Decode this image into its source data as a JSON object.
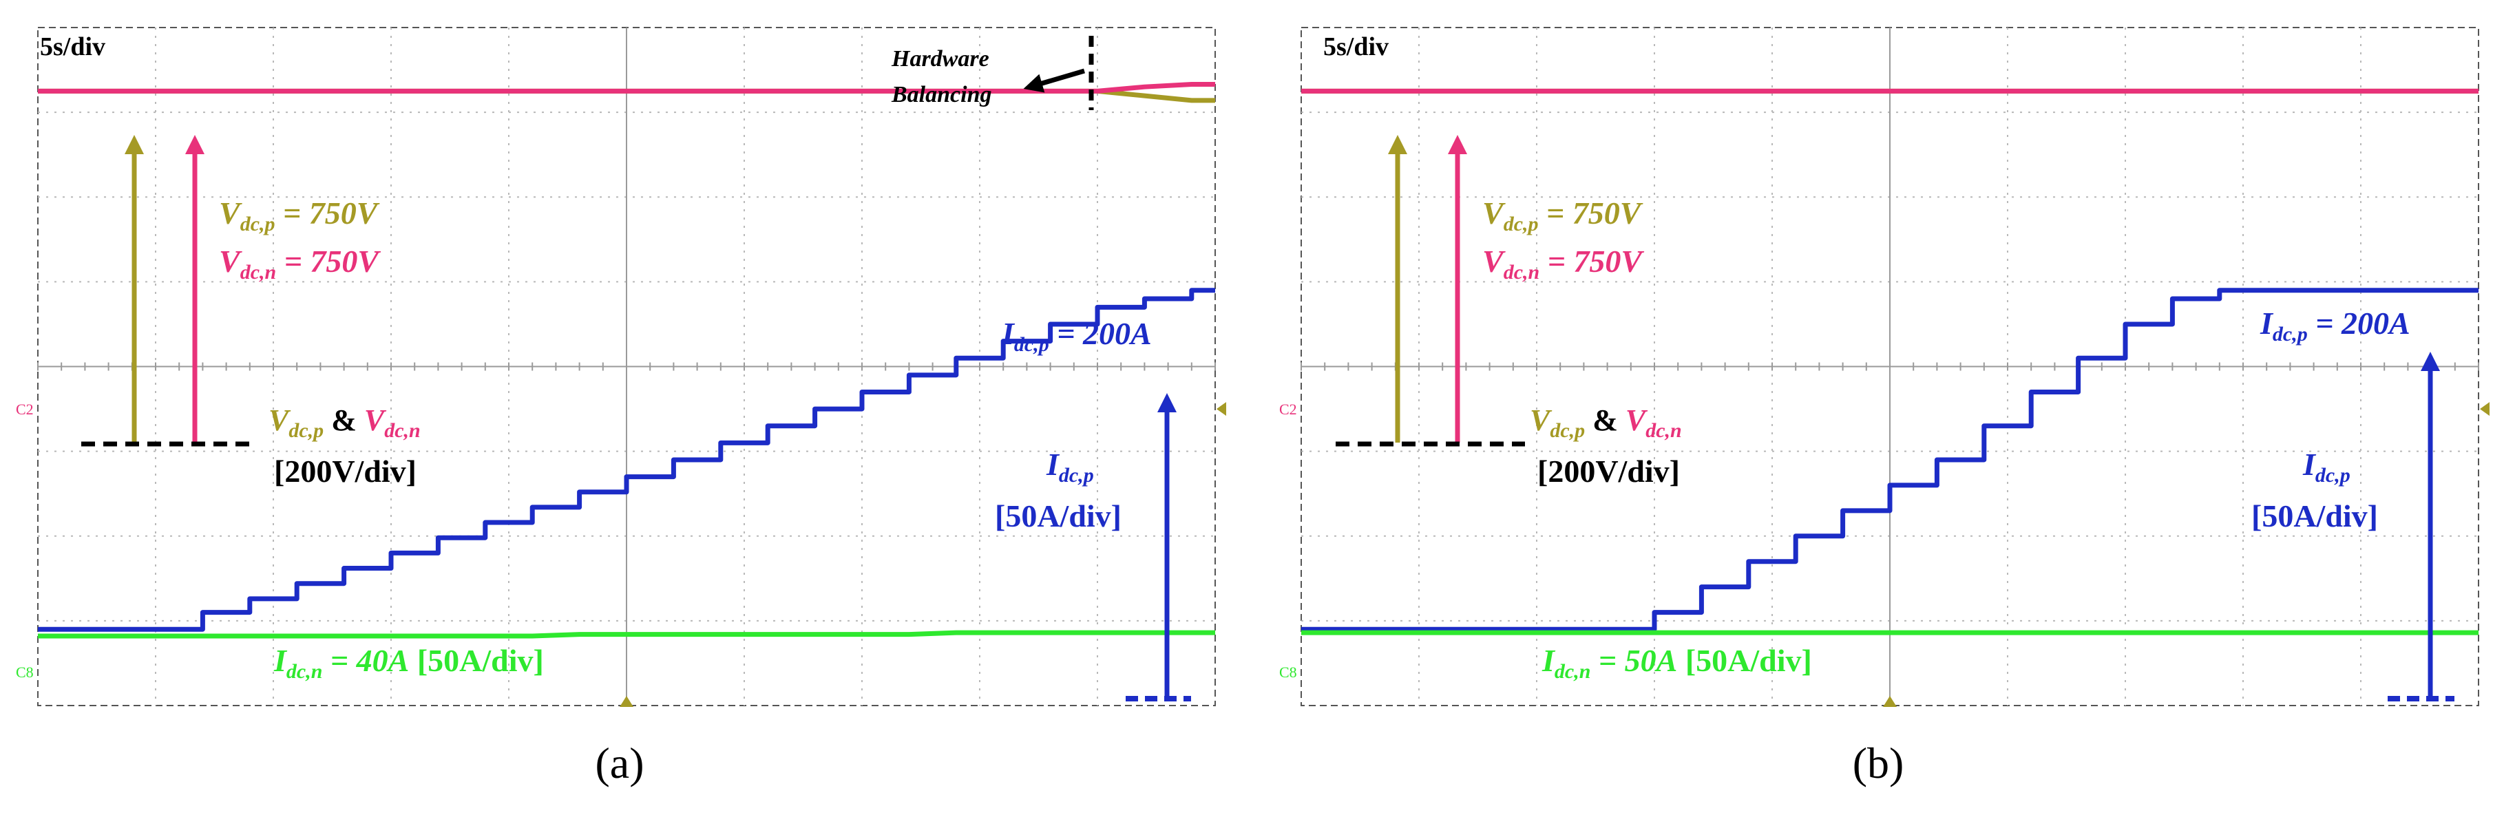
{
  "chart_data": [
    {
      "type": "line",
      "caption": "(a)",
      "timebase_label": "5s/div",
      "channel_marker_upper": "C2",
      "channel_marker_lower": "C8",
      "x": [
        0,
        0.6,
        1,
        1.4,
        1.8,
        2.2,
        2.6,
        3,
        3.4,
        3.8,
        4.2,
        4.6,
        5,
        5.4,
        5.8,
        6.2,
        6.6,
        7,
        7.4,
        7.8,
        8.2,
        8.6,
        9,
        9.4,
        9.8,
        10
      ],
      "series": [
        {
          "name": "V_dc,p",
          "color": "#a59a25",
          "values": [
            750,
            750,
            750,
            750,
            750,
            750,
            750,
            750,
            750,
            750,
            750,
            750,
            750,
            750,
            750,
            750,
            750,
            750,
            750,
            750,
            750,
            750,
            750,
            739,
            728,
            728
          ]
        },
        {
          "name": "V_dc,n",
          "color": "#e8327a",
          "values": [
            750,
            750,
            750,
            750,
            750,
            750,
            750,
            750,
            750,
            750,
            750,
            750,
            750,
            750,
            750,
            750,
            750,
            750,
            750,
            750,
            750,
            750,
            750,
            760,
            766,
            766
          ]
        },
        {
          "name": "I_dc,p",
          "color": "#1c2cc6",
          "values": [
            0,
            0,
            0,
            10,
            18,
            27,
            36,
            45,
            54,
            63,
            72,
            81,
            90,
            100,
            110,
            120,
            130,
            140,
            150,
            160,
            170,
            180,
            190,
            195,
            200,
            200
          ]
        },
        {
          "name": "I_dc,n",
          "color": "#2ee82e",
          "values": [
            -4,
            -4,
            -4,
            -4,
            -4,
            -4,
            -4,
            -4,
            -4,
            -4,
            -4,
            -3,
            -3,
            -3,
            -3,
            -3,
            -3,
            -3,
            -3,
            -2,
            -2,
            -2,
            -2,
            -2,
            -2,
            -2
          ]
        }
      ],
      "annotations": {
        "hw_line1": "Hardware",
        "hw_line2": "Balancing",
        "vp_eq": "= 750V",
        "vn_eq": "= 750V",
        "ip_top_eq": "= 200A",
        "amp": "&",
        "vscale": "[200V/div]",
        "iscale": "[50A/div]",
        "in_eq": "= 40A",
        "in_scale": "[50A/div]"
      }
    },
    {
      "type": "line",
      "caption": "(b)",
      "timebase_label": "5s/div",
      "channel_marker_upper": "C2",
      "channel_marker_lower": "C8",
      "x": [
        0,
        0.6,
        1,
        1.4,
        1.8,
        2.2,
        2.6,
        3,
        3.4,
        3.8,
        4.2,
        4.6,
        5,
        5.4,
        5.8,
        6.2,
        6.6,
        7,
        7.4,
        7.8,
        8.2,
        8.6,
        9,
        9.4,
        9.8,
        10
      ],
      "series": [
        {
          "name": "V_dc,p",
          "color": "#a59a25",
          "values": [
            750,
            750,
            750,
            750,
            750,
            750,
            750,
            750,
            750,
            750,
            750,
            750,
            750,
            750,
            750,
            750,
            750,
            750,
            750,
            750,
            750,
            750,
            750,
            750,
            750,
            750
          ]
        },
        {
          "name": "V_dc,n",
          "color": "#e8327a",
          "values": [
            750,
            750,
            750,
            750,
            750,
            750,
            750,
            750,
            750,
            750,
            750,
            750,
            750,
            750,
            750,
            750,
            750,
            750,
            750,
            750,
            750,
            750,
            750,
            750,
            750,
            750
          ]
        },
        {
          "name": "I_dc,p",
          "color": "#1c2cc6",
          "values": [
            0,
            0,
            0,
            0,
            0,
            0,
            0,
            10,
            25,
            40,
            55,
            70,
            85,
            100,
            120,
            140,
            160,
            180,
            195,
            200,
            200,
            200,
            200,
            200,
            200,
            200
          ]
        },
        {
          "name": "I_dc,n",
          "color": "#2ee82e",
          "values": [
            -2,
            -2,
            -2,
            -2,
            -2,
            -2,
            -2,
            -2,
            -2,
            -2,
            -2,
            -2,
            -2,
            -2,
            -2,
            -2,
            -2,
            -2,
            -2,
            -2,
            -2,
            -2,
            -2,
            -2,
            -2,
            -2
          ]
        }
      ],
      "annotations": {
        "vp_eq": "= 750V",
        "vn_eq": "= 750V",
        "ip_top_eq": "= 200A",
        "amp": "&",
        "vscale": "[200V/div]",
        "iscale": "[50A/div]",
        "in_eq": "= 50A",
        "in_scale": "[50A/div]"
      }
    }
  ]
}
